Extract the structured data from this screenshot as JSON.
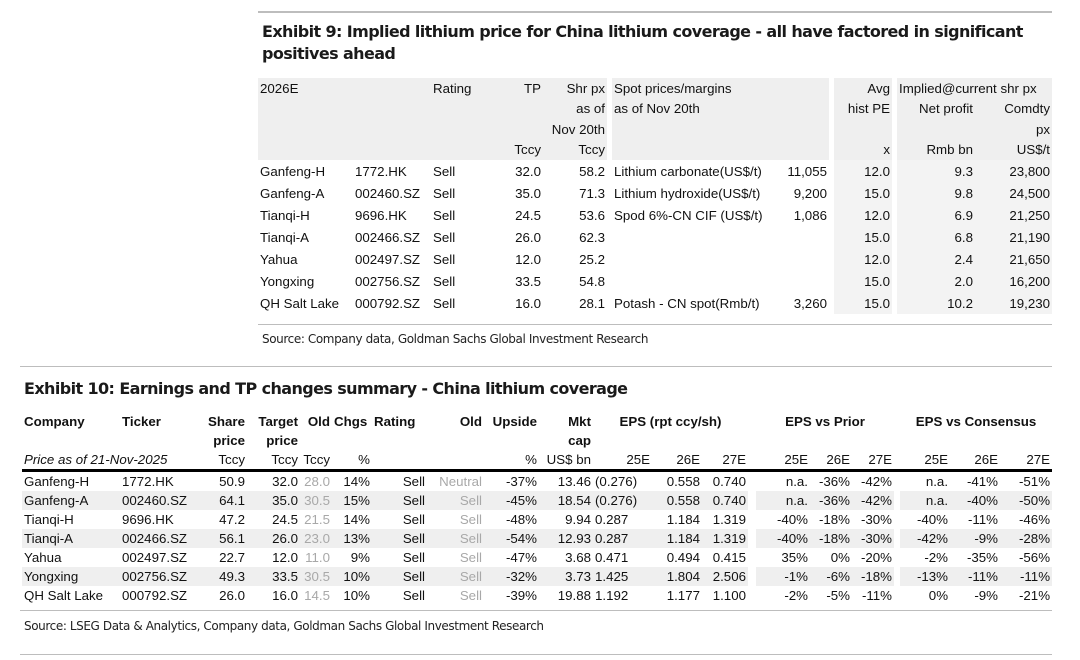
{
  "exhibit9": {
    "title": "Exhibit 9: Implied lithium price for China lithium coverage - all have factored in significant positives ahead",
    "header": [
      [
        "2026E",
        "",
        "Rating",
        "TP",
        "Shr px",
        "Spot prices/margins",
        "",
        "Avg",
        "Implied@current shr px",
        ""
      ],
      [
        "",
        "",
        "",
        "",
        "as of",
        "as of Nov 20th",
        "",
        "hist PE",
        "Net profit",
        "Comdty"
      ],
      [
        "",
        "",
        "",
        "",
        "Nov 20th",
        "",
        "",
        "",
        "",
        "px"
      ],
      [
        "",
        "",
        "",
        "Tccy",
        "Tccy",
        "",
        "",
        "x",
        "Rmb bn",
        "US$/t"
      ]
    ],
    "rows": [
      [
        "Ganfeng-H",
        "1772.HK",
        "Sell",
        "32.0",
        "58.2",
        "Lithium carbonate(US$/t)",
        "11,055",
        "12.0",
        "9.3",
        "23,800"
      ],
      [
        "Ganfeng-A",
        "002460.SZ",
        "Sell",
        "35.0",
        "71.3",
        "Lithium hydroxide(US$/t)",
        "9,200",
        "15.0",
        "9.8",
        "24,500"
      ],
      [
        "Tianqi-H",
        "9696.HK",
        "Sell",
        "24.5",
        "53.6",
        "Spod 6%-CN CIF (US$/t)",
        "1,086",
        "12.0",
        "6.9",
        "21,250"
      ],
      [
        "Tianqi-A",
        "002466.SZ",
        "Sell",
        "26.0",
        "62.3",
        "",
        "",
        "15.0",
        "6.8",
        "21,190"
      ],
      [
        "Yahua",
        "002497.SZ",
        "Sell",
        "12.0",
        "25.2",
        "",
        "",
        "12.0",
        "2.4",
        "21,650"
      ],
      [
        "Yongxing",
        "002756.SZ",
        "Sell",
        "33.5",
        "54.8",
        "",
        "",
        "15.0",
        "2.0",
        "16,200"
      ],
      [
        "QH Salt Lake",
        "000792.SZ",
        "Sell",
        "16.0",
        "28.1",
        "Potash - CN spot(Rmb/t)",
        "3,260",
        "15.0",
        "10.2",
        "19,230"
      ]
    ],
    "source": "Source: Company data, Goldman Sachs Global Investment Research"
  },
  "exhibit10": {
    "title": "Exhibit 10: Earnings and TP changes summary - China lithium coverage",
    "header1": [
      "Company",
      "Ticker",
      "Share",
      "Target",
      "Old",
      "Chgs",
      "Rating",
      "Old",
      "Upside",
      "Mkt",
      "EPS (rpt ccy/sh)",
      "EPS vs Prior",
      "EPS vs Consensus"
    ],
    "header2": [
      "price",
      "price",
      "cap"
    ],
    "units": [
      "Price as of 21-Nov-2025",
      "Tccy",
      "Tccy",
      "Tccy",
      "%",
      "%",
      "US$ bn",
      "25E",
      "26E",
      "27E",
      "25E",
      "26E",
      "27E",
      "25E",
      "26E",
      "27E"
    ],
    "rows": [
      [
        "Ganfeng-H",
        "1772.HK",
        "50.9",
        "32.0",
        "28.0",
        "14%",
        "Sell",
        "Neutral",
        "-37%",
        "13.46",
        "(0.276)",
        "0.558",
        "0.740",
        "n.a.",
        "-36%",
        "-42%",
        "n.a.",
        "-41%",
        "-51%"
      ],
      [
        "Ganfeng-A",
        "002460.SZ",
        "64.1",
        "35.0",
        "30.5",
        "15%",
        "Sell",
        "Sell",
        "-45%",
        "18.54",
        "(0.276)",
        "0.558",
        "0.740",
        "n.a.",
        "-36%",
        "-42%",
        "n.a.",
        "-40%",
        "-50%"
      ],
      [
        "Tianqi-H",
        "9696.HK",
        "47.2",
        "24.5",
        "21.5",
        "14%",
        "Sell",
        "Sell",
        "-48%",
        "9.94",
        "0.287",
        "1.184",
        "1.319",
        "-40%",
        "-18%",
        "-30%",
        "-40%",
        "-11%",
        "-46%"
      ],
      [
        "Tianqi-A",
        "002466.SZ",
        "56.1",
        "26.0",
        "23.0",
        "13%",
        "Sell",
        "Sell",
        "-54%",
        "12.93",
        "0.287",
        "1.184",
        "1.319",
        "-40%",
        "-18%",
        "-30%",
        "-42%",
        "-9%",
        "-28%"
      ],
      [
        "Yahua",
        "002497.SZ",
        "22.7",
        "12.0",
        "11.0",
        "9%",
        "Sell",
        "Sell",
        "-47%",
        "3.68",
        "0.471",
        "0.494",
        "0.415",
        "35%",
        "0%",
        "-20%",
        "-2%",
        "-35%",
        "-56%"
      ],
      [
        "Yongxing",
        "002756.SZ",
        "49.3",
        "33.5",
        "30.5",
        "10%",
        "Sell",
        "Sell",
        "-32%",
        "3.73",
        "1.425",
        "1.804",
        "2.506",
        "-1%",
        "-6%",
        "-18%",
        "-13%",
        "-11%",
        "-11%"
      ],
      [
        "QH Salt Lake",
        "000792.SZ",
        "26.0",
        "16.0",
        "14.5",
        "10%",
        "Sell",
        "Sell",
        "-39%",
        "19.88",
        "1.192",
        "1.177",
        "1.100",
        "-2%",
        "-5%",
        "-11%",
        "0%",
        "-9%",
        "-21%"
      ]
    ],
    "source": "Source: LSEG Data & Analytics, Company data, Goldman Sachs Global Investment Research"
  }
}
